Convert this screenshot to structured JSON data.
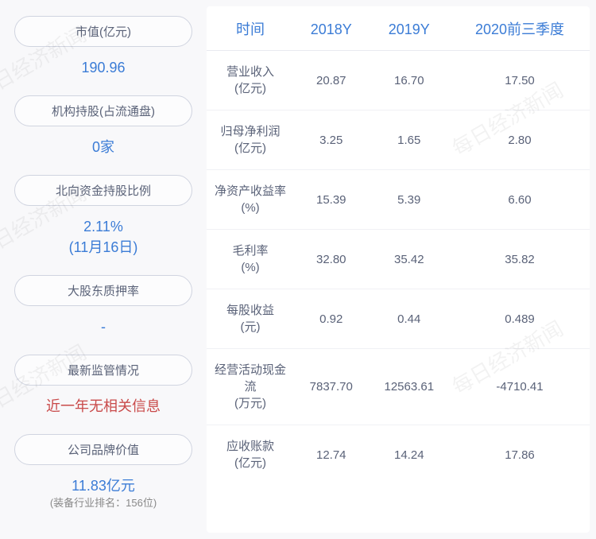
{
  "watermarks": [
    "每日经济新闻",
    "每日经济新闻",
    "每日经济新闻",
    "每日经济新闻",
    "每日经济新闻"
  ],
  "left": {
    "items": [
      {
        "label": "市值(亿元)",
        "value": "190.96",
        "sub": ""
      },
      {
        "label": "机构持股(占流通盘)",
        "value": "0家",
        "sub": ""
      },
      {
        "label": "北向资金持股比例",
        "value": "2.11%",
        "sub": "(11月16日)"
      },
      {
        "label": "大股东质押率",
        "value": "-",
        "sub": ""
      },
      {
        "label": "最新监管情况",
        "value": "近一年无相关信息",
        "sub": "",
        "warn": true
      },
      {
        "label": "公司品牌价值",
        "value": "11.83亿元",
        "sub": "(装备行业排名：156位)"
      }
    ]
  },
  "table": {
    "columns": [
      "时间",
      "2018Y",
      "2019Y",
      "2020前三季度"
    ],
    "rows": [
      {
        "metric": "营业收入",
        "unit": "(亿元)",
        "cells": [
          "20.87",
          "16.70",
          "17.50"
        ]
      },
      {
        "metric": "归母净利润",
        "unit": "(亿元)",
        "cells": [
          "3.25",
          "1.65",
          "2.80"
        ]
      },
      {
        "metric": "净资产收益率",
        "unit": "(%)",
        "cells": [
          "15.39",
          "5.39",
          "6.60"
        ]
      },
      {
        "metric": "毛利率",
        "unit": "(%)",
        "cells": [
          "32.80",
          "35.42",
          "35.82"
        ]
      },
      {
        "metric": "每股收益",
        "unit": "(元)",
        "cells": [
          "0.92",
          "0.44",
          "0.489"
        ]
      },
      {
        "metric": "经营活动现金流",
        "unit": "(万元)",
        "cells": [
          "7837.70",
          "12563.61",
          "-4710.41"
        ]
      },
      {
        "metric": "应收账款",
        "unit": "(亿元)",
        "cells": [
          "12.74",
          "14.24",
          "17.86"
        ]
      }
    ]
  }
}
